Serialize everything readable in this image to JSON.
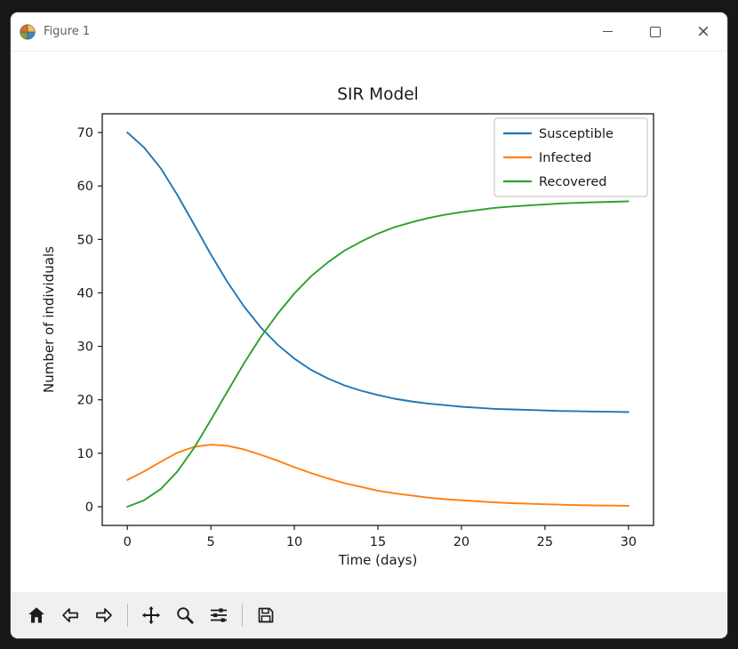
{
  "window": {
    "title": "Figure 1",
    "controls": {
      "minimize_label": "minimize",
      "maximize_label": "maximize",
      "close_glyph": "×"
    }
  },
  "toolbar": {
    "icons": [
      "home",
      "back",
      "forward",
      "pan",
      "zoom",
      "configure-subplots",
      "save"
    ]
  },
  "chart_data": {
    "type": "line",
    "title": "SIR Model",
    "xlabel": "Time (days)",
    "ylabel": "Number of individuals",
    "xlim": [
      -1.5,
      31.5
    ],
    "ylim": [
      -3.5,
      73.5
    ],
    "xticks": [
      0,
      5,
      10,
      15,
      20,
      25,
      30
    ],
    "yticks": [
      0,
      10,
      20,
      30,
      40,
      50,
      60,
      70
    ],
    "grid": false,
    "legend_position": "upper right",
    "x": [
      0,
      1,
      2,
      3,
      4,
      5,
      6,
      7,
      8,
      9,
      10,
      11,
      12,
      13,
      14,
      15,
      16,
      17,
      18,
      19,
      20,
      21,
      22,
      23,
      24,
      25,
      26,
      27,
      28,
      29,
      30
    ],
    "series": [
      {
        "name": "Susceptible",
        "color": "#1f77b4",
        "values": [
          70,
          67.2,
          63.3,
          58.3,
          52.8,
          47.2,
          42.0,
          37.4,
          33.5,
          30.3,
          27.7,
          25.6,
          24.0,
          22.7,
          21.7,
          20.9,
          20.2,
          19.7,
          19.3,
          19.0,
          18.7,
          18.5,
          18.3,
          18.2,
          18.1,
          18.0,
          17.9,
          17.85,
          17.8,
          17.75,
          17.7
        ]
      },
      {
        "name": "Infected",
        "color": "#ff7f0e",
        "values": [
          5,
          6.6,
          8.4,
          10.1,
          11.2,
          11.6,
          11.4,
          10.7,
          9.7,
          8.6,
          7.4,
          6.3,
          5.3,
          4.4,
          3.7,
          3.0,
          2.5,
          2.1,
          1.7,
          1.4,
          1.2,
          1.0,
          0.8,
          0.65,
          0.55,
          0.45,
          0.37,
          0.3,
          0.25,
          0.21,
          0.17
        ]
      },
      {
        "name": "Recovered",
        "color": "#2ca02c",
        "values": [
          0,
          1.2,
          3.3,
          6.6,
          11.0,
          16.2,
          21.6,
          26.9,
          31.8,
          36.1,
          39.9,
          43.1,
          45.7,
          47.9,
          49.6,
          51.1,
          52.3,
          53.2,
          54.0,
          54.6,
          55.1,
          55.5,
          55.9,
          56.15,
          56.35,
          56.55,
          56.73,
          56.85,
          56.95,
          57.04,
          57.13
        ]
      }
    ]
  }
}
